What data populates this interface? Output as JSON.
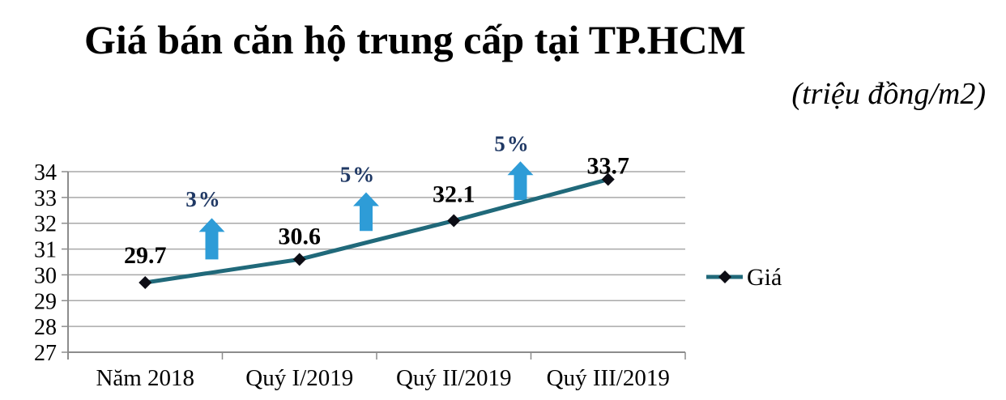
{
  "header": {
    "title": "Giá bán căn hộ trung cấp tại TP.HCM",
    "subtitle": "(triệu đồng/m2)"
  },
  "chart_data": {
    "type": "line",
    "title": "Giá bán căn hộ trung cấp tại TP.HCM",
    "unit_label": "(triệu đồng/m2)",
    "categories": [
      "Năm 2018",
      "Quý I/2019",
      "Quý II/2019",
      "Quý III/2019"
    ],
    "series": [
      {
        "name": "Giá",
        "values": [
          29.7,
          30.6,
          32.1,
          33.7
        ],
        "data_labels": [
          "29.7",
          "30.6",
          "32.1",
          "33.7"
        ]
      }
    ],
    "ylim": [
      27,
      34
    ],
    "yticks": [
      27,
      28,
      29,
      30,
      31,
      32,
      33,
      34
    ],
    "grid": true,
    "legend": {
      "position": "right",
      "entries": [
        "Giá"
      ]
    },
    "annotations": [
      {
        "label": "3%",
        "between": [
          0,
          1
        ],
        "arrow_top_value": 32.2,
        "arrow_bottom_value": 30.6,
        "label_value": 32.65
      },
      {
        "label": "5%",
        "between": [
          1,
          2
        ],
        "arrow_top_value": 33.2,
        "arrow_bottom_value": 31.7,
        "label_value": 33.6
      },
      {
        "label": "5%",
        "between": [
          2,
          3
        ],
        "arrow_top_value": 34.4,
        "arrow_bottom_value": 32.9,
        "label_value": 34.8
      }
    ],
    "label_offsets": [
      -19,
      -14,
      -18,
      -2
    ],
    "colors": {
      "line": "#20697A",
      "marker": "#0D0D15",
      "arrow": "#2E9CD7",
      "annotation_text": "#1F3864",
      "gridline": "#A9A9A9",
      "axis": "#8C8C8C",
      "text": "#000000"
    }
  }
}
